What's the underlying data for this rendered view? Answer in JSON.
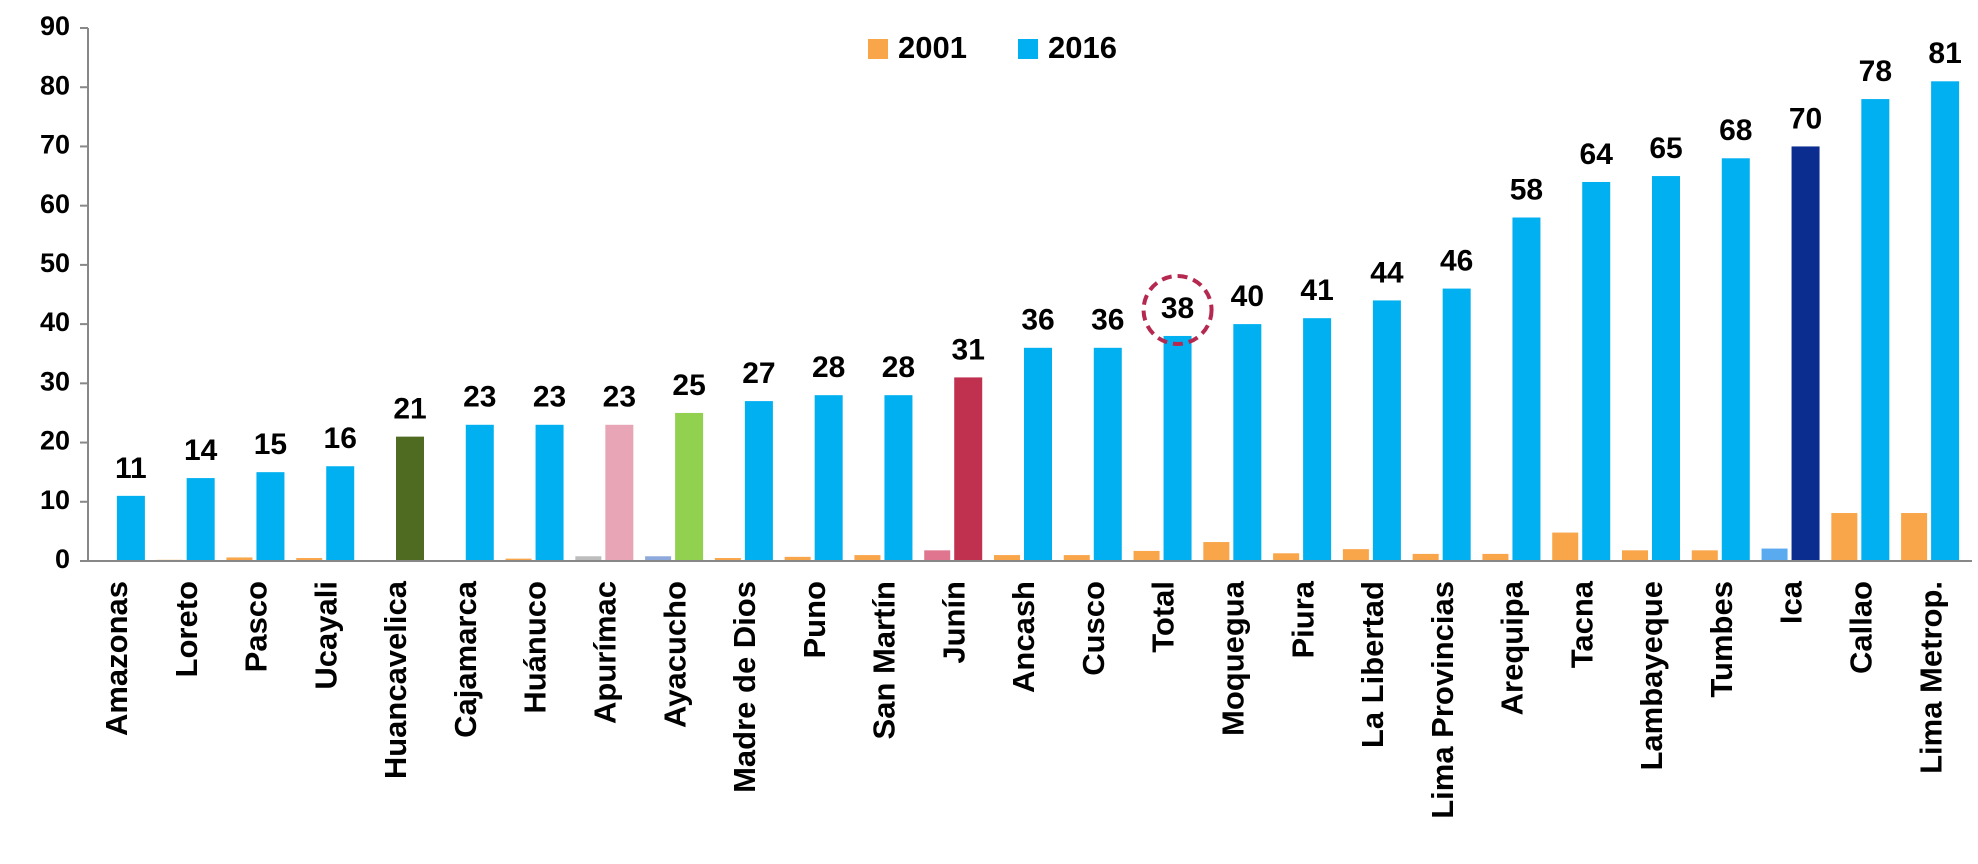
{
  "chart_data": {
    "type": "bar",
    "categories": [
      "Amazonas",
      "Loreto",
      "Pasco",
      "Ucayali",
      "Huancavelica",
      "Cajamarca",
      "Huánuco",
      "Apurímac",
      "Ayacucho",
      "Madre de Dios",
      "Puno",
      "San Martín",
      "Junín",
      "Ancash",
      "Cusco",
      "Total",
      "Moquegua",
      "Piura",
      "La Libertad",
      "Lima Provincias",
      "Arequipa",
      "Tacna",
      "Lambayeque",
      "Tumbes",
      "Ica",
      "Callao",
      "Lima Metrop."
    ],
    "series": [
      {
        "name": "2001",
        "color": "#f9a54a",
        "values": [
          0,
          0.2,
          0.6,
          0.5,
          0,
          0,
          0.4,
          0.8,
          0.8,
          0.5,
          0.7,
          1.0,
          1.8,
          1.0,
          1.0,
          1.7,
          3.2,
          1.3,
          2.0,
          1.2,
          1.2,
          4.8,
          1.8,
          1.8,
          2.1,
          8.1,
          8.1
        ],
        "colors": [
          "#f9a54a",
          "#f9a54a",
          "#f9a54a",
          "#f9a54a",
          "#f9a54a",
          "#f9a54a",
          "#f9a54a",
          "#bdbdbd",
          "#8ea9db",
          "#f9a54a",
          "#f9a54a",
          "#f9a54a",
          "#e07590",
          "#f9a54a",
          "#f9a54a",
          "#f9a54a",
          "#f9a54a",
          "#f9a54a",
          "#f9a54a",
          "#f9a54a",
          "#f9a54a",
          "#f9a54a",
          "#f9a54a",
          "#f9a54a",
          "#5aaaf0",
          "#f9a54a",
          "#f9a54a"
        ]
      },
      {
        "name": "2016",
        "color": "#00b0f0",
        "values": [
          11,
          14,
          15,
          16,
          21,
          23,
          23,
          23,
          25,
          27,
          28,
          28,
          31,
          36,
          36,
          38,
          40,
          41,
          44,
          46,
          58,
          64,
          65,
          68,
          70,
          78,
          81
        ],
        "colors": [
          "#00b0f0",
          "#00b0f0",
          "#00b0f0",
          "#00b0f0",
          "#4f6b22",
          "#00b0f0",
          "#00b0f0",
          "#e8a5b5",
          "#92d050",
          "#00b0f0",
          "#00b0f0",
          "#00b0f0",
          "#c0304f",
          "#00b0f0",
          "#00b0f0",
          "#00b0f0",
          "#00b0f0",
          "#00b0f0",
          "#00b0f0",
          "#00b0f0",
          "#00b0f0",
          "#00b0f0",
          "#00b0f0",
          "#00b0f0",
          "#0a2d8f",
          "#00b0f0",
          "#00b0f0"
        ],
        "data_labels": true
      }
    ],
    "highlight_category": "Total",
    "ylim": [
      0,
      90
    ],
    "yticks": [
      0,
      10,
      20,
      30,
      40,
      50,
      60,
      70,
      80,
      90
    ],
    "grid": false
  }
}
